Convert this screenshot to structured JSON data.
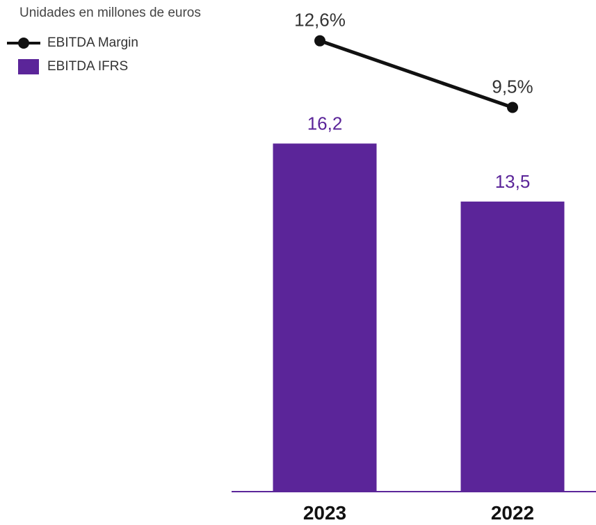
{
  "unit_note": "Unidades en millones de euros",
  "legend": [
    {
      "label": "EBITDA Margin",
      "kind": "line-dot",
      "color": "#111111"
    },
    {
      "label": "EBITDA IFRS",
      "kind": "swatch",
      "color": "#5b2599"
    }
  ],
  "chart_data": {
    "type": "bar",
    "categories": [
      "2023",
      "2022"
    ],
    "series": [
      {
        "name": "EBITDA IFRS",
        "values": [
          16.2,
          13.5
        ],
        "labels": [
          "16,2",
          "13,5"
        ],
        "color": "#5b2599"
      },
      {
        "name": "EBITDA Margin",
        "type": "line",
        "values": [
          12.6,
          9.5
        ],
        "labels": [
          "12,6%",
          "9,5%"
        ],
        "color": "#111111"
      }
    ],
    "axis_color": "#5b2599"
  }
}
